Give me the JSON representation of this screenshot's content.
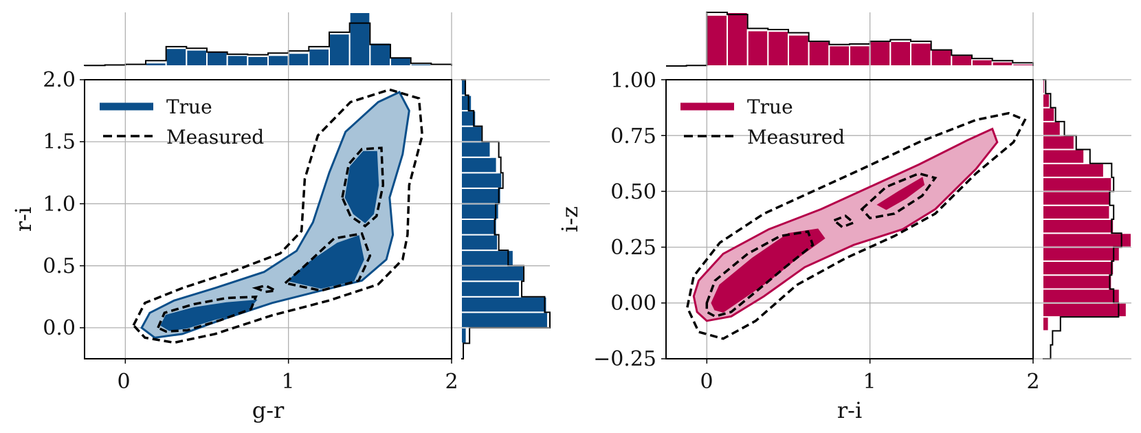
{
  "chart_data": [
    {
      "type": "contour",
      "xlabel": "g-r",
      "ylabel": "r-i",
      "xlim": [
        -0.25,
        2.0
      ],
      "ylim": [
        -0.25,
        2.0
      ],
      "xticks": [
        0,
        1,
        2
      ],
      "xtick_labels": [
        "0",
        "1",
        "2"
      ],
      "yticks": [
        0.0,
        0.5,
        1.0,
        1.5,
        2.0
      ],
      "ytick_labels": [
        "0.0",
        "0.5",
        "1.0",
        "1.5",
        "2.0"
      ],
      "grid": true,
      "color": "#0b4f8a",
      "color_light": "#a8c3d8",
      "legend": {
        "position": "top-left",
        "entries": [
          "True",
          "Measured"
        ]
      },
      "contours": {
        "true_outer": [
          [
            0.1,
            0.0
          ],
          [
            0.15,
            0.12
          ],
          [
            0.3,
            0.22
          ],
          [
            0.55,
            0.32
          ],
          [
            0.85,
            0.45
          ],
          [
            1.05,
            0.62
          ],
          [
            1.15,
            0.85
          ],
          [
            1.25,
            1.25
          ],
          [
            1.35,
            1.58
          ],
          [
            1.55,
            1.82
          ],
          [
            1.68,
            1.9
          ],
          [
            1.74,
            1.75
          ],
          [
            1.7,
            1.4
          ],
          [
            1.62,
            1.05
          ],
          [
            1.64,
            0.75
          ],
          [
            1.6,
            0.55
          ],
          [
            1.45,
            0.38
          ],
          [
            1.2,
            0.3
          ],
          [
            0.9,
            0.2
          ],
          [
            0.6,
            0.07
          ],
          [
            0.35,
            -0.05
          ],
          [
            0.18,
            -0.08
          ]
        ],
        "true_inner": [
          [
            [
              0.22,
              0.02
            ],
            [
              0.25,
              0.1
            ],
            [
              0.42,
              0.16
            ],
            [
              0.62,
              0.2
            ],
            [
              0.8,
              0.22
            ],
            [
              0.74,
              0.13
            ],
            [
              0.55,
              0.07
            ],
            [
              0.38,
              0.0
            ],
            [
              0.27,
              -0.02
            ]
          ],
          [
            [
              1.0,
              0.38
            ],
            [
              1.12,
              0.52
            ],
            [
              1.3,
              0.68
            ],
            [
              1.43,
              0.74
            ],
            [
              1.46,
              0.55
            ],
            [
              1.4,
              0.38
            ],
            [
              1.2,
              0.32
            ]
          ],
          [
            [
              1.35,
              1.05
            ],
            [
              1.38,
              1.3
            ],
            [
              1.46,
              1.42
            ],
            [
              1.54,
              1.42
            ],
            [
              1.55,
              1.15
            ],
            [
              1.52,
              0.92
            ],
            [
              1.47,
              0.85
            ],
            [
              1.4,
              0.92
            ]
          ]
        ],
        "measured_outer": [
          [
            0.05,
            0.02
          ],
          [
            0.12,
            0.2
          ],
          [
            0.35,
            0.32
          ],
          [
            0.65,
            0.45
          ],
          [
            0.95,
            0.6
          ],
          [
            1.08,
            0.78
          ],
          [
            1.1,
            1.2
          ],
          [
            1.18,
            1.55
          ],
          [
            1.38,
            1.82
          ],
          [
            1.62,
            1.92
          ],
          [
            1.8,
            1.85
          ],
          [
            1.82,
            1.55
          ],
          [
            1.74,
            1.15
          ],
          [
            1.73,
            0.75
          ],
          [
            1.7,
            0.55
          ],
          [
            1.55,
            0.35
          ],
          [
            1.25,
            0.22
          ],
          [
            0.9,
            0.1
          ],
          [
            0.55,
            -0.05
          ],
          [
            0.3,
            -0.12
          ],
          [
            0.12,
            -0.08
          ]
        ],
        "measured_inner": [
          [
            [
              0.2,
              0.0
            ],
            [
              0.24,
              0.12
            ],
            [
              0.42,
              0.19
            ],
            [
              0.62,
              0.24
            ],
            [
              0.8,
              0.25
            ],
            [
              0.77,
              0.15
            ],
            [
              0.58,
              0.06
            ],
            [
              0.38,
              -0.02
            ],
            [
              0.25,
              -0.03
            ]
          ],
          [
            [
              0.8,
              0.32
            ],
            [
              0.86,
              0.34
            ],
            [
              0.92,
              0.3
            ],
            [
              0.86,
              0.29
            ]
          ],
          [
            [
              0.98,
              0.36
            ],
            [
              1.1,
              0.5
            ],
            [
              1.28,
              0.72
            ],
            [
              1.45,
              0.76
            ],
            [
              1.5,
              0.58
            ],
            [
              1.43,
              0.38
            ],
            [
              1.2,
              0.3
            ]
          ],
          [
            [
              1.33,
              1.05
            ],
            [
              1.37,
              1.32
            ],
            [
              1.45,
              1.44
            ],
            [
              1.57,
              1.45
            ],
            [
              1.58,
              1.15
            ],
            [
              1.54,
              0.9
            ],
            [
              1.47,
              0.82
            ],
            [
              1.38,
              0.9
            ]
          ]
        ]
      },
      "marginal_x": {
        "bin_edges": [
          -0.25,
          -0.125,
          0.0,
          0.125,
          0.25,
          0.375,
          0.5,
          0.625,
          0.75,
          0.875,
          1.0,
          1.125,
          1.25,
          1.375,
          1.5,
          1.625,
          1.75,
          1.875,
          2.0
        ],
        "true_counts": [
          0.0,
          0.0,
          0.0,
          0.06,
          0.33,
          0.3,
          0.27,
          0.2,
          0.18,
          0.2,
          0.24,
          0.32,
          0.6,
          1.0,
          0.43,
          0.17,
          0.04,
          0.02
        ],
        "measured_counts": [
          0.01,
          0.02,
          0.03,
          0.1,
          0.36,
          0.33,
          0.26,
          0.22,
          0.21,
          0.24,
          0.28,
          0.36,
          0.63,
          0.8,
          0.4,
          0.15,
          0.05,
          0.03
        ]
      },
      "marginal_y": {
        "bin_edges": [
          -0.25,
          -0.125,
          0.0,
          0.125,
          0.25,
          0.375,
          0.5,
          0.625,
          0.75,
          0.875,
          1.0,
          1.125,
          1.25,
          1.375,
          1.5,
          1.625,
          1.75,
          1.875,
          2.0
        ],
        "true_counts": [
          0.0,
          0.05,
          0.83,
          0.82,
          0.56,
          0.6,
          0.5,
          0.35,
          0.34,
          0.36,
          0.38,
          0.39,
          0.34,
          0.28,
          0.2,
          0.14,
          0.1,
          0.05
        ],
        "measured_counts": [
          0.02,
          0.08,
          0.85,
          0.8,
          0.58,
          0.6,
          0.45,
          0.36,
          0.32,
          0.33,
          0.36,
          0.4,
          0.38,
          0.36,
          0.2,
          0.12,
          0.07,
          0.04
        ]
      }
    },
    {
      "type": "contour",
      "xlabel": "r-i",
      "ylabel": "i-z",
      "xlim": [
        -0.25,
        2.0
      ],
      "ylim": [
        -0.25,
        1.0
      ],
      "xticks": [
        0,
        1,
        2
      ],
      "xtick_labels": [
        "0",
        "1",
        "2"
      ],
      "yticks": [
        -0.25,
        0.0,
        0.25,
        0.5,
        0.75,
        1.0
      ],
      "ytick_labels": [
        "−0.25",
        "0.00",
        "0.25",
        "0.50",
        "0.75",
        "1.00"
      ],
      "grid": true,
      "color": "#b5004a",
      "color_light": "#e8a9c2",
      "legend": {
        "position": "top-left",
        "entries": [
          "True",
          "Measured"
        ]
      },
      "contours": {
        "true_outer": [
          [
            -0.08,
            0.03
          ],
          [
            -0.05,
            0.1
          ],
          [
            0.1,
            0.22
          ],
          [
            0.38,
            0.33
          ],
          [
            0.7,
            0.42
          ],
          [
            1.0,
            0.52
          ],
          [
            1.3,
            0.62
          ],
          [
            1.6,
            0.73
          ],
          [
            1.75,
            0.78
          ],
          [
            1.78,
            0.72
          ],
          [
            1.65,
            0.6
          ],
          [
            1.4,
            0.42
          ],
          [
            1.2,
            0.33
          ],
          [
            0.9,
            0.26
          ],
          [
            0.6,
            0.16
          ],
          [
            0.35,
            0.03
          ],
          [
            0.15,
            -0.06
          ],
          [
            0.0,
            -0.08
          ],
          [
            -0.06,
            -0.04
          ]
        ],
        "true_inner": [
          [
            [
              0.03,
              0.0
            ],
            [
              0.08,
              0.08
            ],
            [
              0.28,
              0.2
            ],
            [
              0.5,
              0.31
            ],
            [
              0.68,
              0.33
            ],
            [
              0.72,
              0.29
            ],
            [
              0.55,
              0.2
            ],
            [
              0.38,
              0.1
            ],
            [
              0.22,
              0.02
            ],
            [
              0.1,
              -0.04
            ],
            [
              0.05,
              -0.03
            ]
          ],
          [
            [
              1.05,
              0.44
            ],
            [
              1.18,
              0.5
            ],
            [
              1.32,
              0.56
            ],
            [
              1.33,
              0.53
            ],
            [
              1.22,
              0.47
            ],
            [
              1.1,
              0.42
            ]
          ]
        ],
        "measured_outer": [
          [
            -0.12,
            -0.02
          ],
          [
            -0.08,
            0.12
          ],
          [
            0.08,
            0.27
          ],
          [
            0.35,
            0.4
          ],
          [
            0.65,
            0.5
          ],
          [
            0.95,
            0.6
          ],
          [
            1.3,
            0.72
          ],
          [
            1.65,
            0.82
          ],
          [
            1.85,
            0.85
          ],
          [
            1.95,
            0.82
          ],
          [
            1.88,
            0.72
          ],
          [
            1.65,
            0.58
          ],
          [
            1.4,
            0.4
          ],
          [
            1.15,
            0.3
          ],
          [
            0.85,
            0.2
          ],
          [
            0.55,
            0.08
          ],
          [
            0.3,
            -0.08
          ],
          [
            0.1,
            -0.16
          ],
          [
            -0.05,
            -0.13
          ]
        ],
        "measured_inner": [
          [
            [
              0.0,
              0.0
            ],
            [
              0.05,
              0.1
            ],
            [
              0.25,
              0.22
            ],
            [
              0.45,
              0.3
            ],
            [
              0.62,
              0.32
            ],
            [
              0.65,
              0.26
            ],
            [
              0.48,
              0.16
            ],
            [
              0.3,
              0.05
            ],
            [
              0.15,
              -0.04
            ],
            [
              0.05,
              -0.06
            ],
            [
              0.0,
              -0.04
            ]
          ],
          [
            [
              0.78,
              0.37
            ],
            [
              0.85,
              0.39
            ],
            [
              0.9,
              0.36
            ],
            [
              0.83,
              0.34
            ]
          ],
          [
            [
              0.95,
              0.42
            ],
            [
              1.1,
              0.52
            ],
            [
              1.3,
              0.58
            ],
            [
              1.4,
              0.56
            ],
            [
              1.32,
              0.48
            ],
            [
              1.15,
              0.4
            ],
            [
              1.0,
              0.38
            ]
          ]
        ]
      },
      "marginal_x": {
        "bin_edges": [
          -0.25,
          -0.125,
          0.0,
          0.125,
          0.25,
          0.375,
          0.5,
          0.625,
          0.75,
          0.875,
          1.0,
          1.125,
          1.25,
          1.375,
          1.5,
          1.625,
          1.75,
          1.875,
          2.0
        ],
        "true_counts": [
          0.0,
          0.03,
          0.95,
          1.0,
          0.66,
          0.65,
          0.58,
          0.46,
          0.38,
          0.38,
          0.46,
          0.46,
          0.43,
          0.3,
          0.2,
          0.12,
          0.08,
          0.04
        ],
        "measured_counts": [
          0.0,
          0.01,
          1.0,
          0.96,
          0.7,
          0.68,
          0.62,
          0.46,
          0.4,
          0.41,
          0.46,
          0.49,
          0.46,
          0.3,
          0.2,
          0.14,
          0.1,
          0.06
        ]
      },
      "marginal_y": {
        "bin_edges": [
          -0.25,
          -0.1875,
          -0.125,
          -0.0625,
          0.0,
          0.0625,
          0.125,
          0.1875,
          0.25,
          0.3125,
          0.375,
          0.4375,
          0.5,
          0.5625,
          0.625,
          0.6875,
          0.75,
          0.8125,
          0.875,
          0.9375,
          1.0
        ],
        "true_counts": [
          0.0,
          0.0,
          0.06,
          0.85,
          0.78,
          0.7,
          0.72,
          0.78,
          0.9,
          0.72,
          0.68,
          0.68,
          0.7,
          0.62,
          0.42,
          0.32,
          0.18,
          0.12,
          0.07,
          0.02
        ],
        "measured_counts": [
          0.08,
          0.1,
          0.18,
          0.77,
          0.72,
          0.68,
          0.7,
          0.72,
          0.8,
          0.7,
          0.72,
          0.68,
          0.72,
          0.7,
          0.48,
          0.34,
          0.22,
          0.13,
          0.08,
          0.03
        ]
      }
    }
  ]
}
